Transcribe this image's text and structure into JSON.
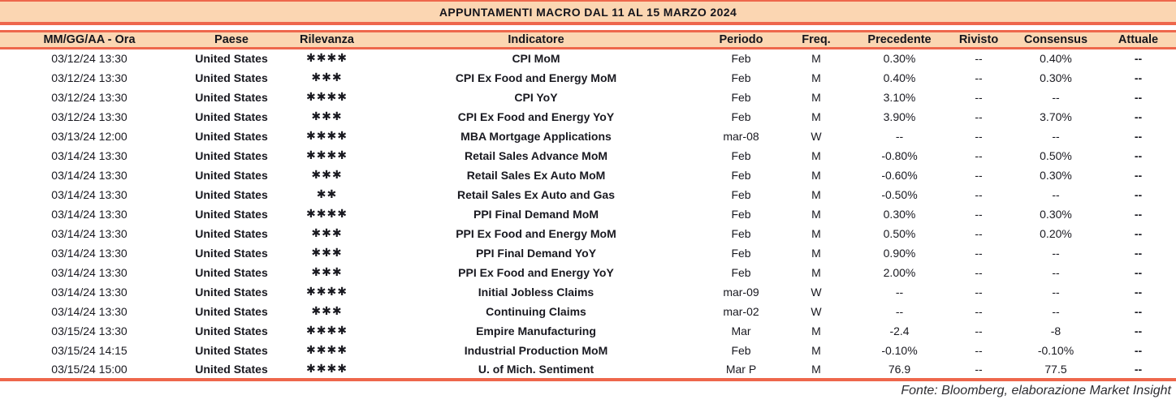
{
  "title": "APPUNTAMENTI MACRO DAL 11 AL 15 MARZO 2024",
  "footer": {
    "source": "Fonte: Bloomberg, elaborazione Market Insight"
  },
  "colors": {
    "band_background": "#fbd6b2",
    "rule_orange": "#ee674c",
    "stars_coral": "#f0705c",
    "text_dark": "#191920"
  },
  "chart_data": {
    "type": "table",
    "title": "APPUNTAMENTI MACRO DAL 11 AL 15 MARZO 2024",
    "columns": [
      "MM/GG/AA - Ora",
      "Paese",
      "Rilevanza",
      "Indicatore",
      "Periodo",
      "Freq.",
      "Precedente",
      "Rivisto",
      "Consensus",
      "Attuale"
    ],
    "column_keys": [
      "datetime",
      "paese",
      "rilevanza",
      "indicatore",
      "periodo",
      "freq",
      "precedente",
      "rivisto",
      "consensus",
      "attuale"
    ],
    "rows": [
      {
        "datetime": "03/12/24 13:30",
        "paese": "United States",
        "rilevanza": "✱✱✱✱",
        "indicatore": "CPI MoM",
        "periodo": "Feb",
        "freq": "M",
        "precedente": "0.30%",
        "rivisto": "--",
        "consensus": "0.40%",
        "attuale": "--"
      },
      {
        "datetime": "03/12/24 13:30",
        "paese": "United States",
        "rilevanza": "✱✱✱",
        "indicatore": "CPI Ex Food and Energy MoM",
        "periodo": "Feb",
        "freq": "M",
        "precedente": "0.40%",
        "rivisto": "--",
        "consensus": "0.30%",
        "attuale": "--"
      },
      {
        "datetime": "03/12/24 13:30",
        "paese": "United States",
        "rilevanza": "✱✱✱✱",
        "indicatore": "CPI YoY",
        "periodo": "Feb",
        "freq": "M",
        "precedente": "3.10%",
        "rivisto": "--",
        "consensus": "--",
        "attuale": "--"
      },
      {
        "datetime": "03/12/24 13:30",
        "paese": "United States",
        "rilevanza": "✱✱✱",
        "indicatore": "CPI Ex Food and Energy YoY",
        "periodo": "Feb",
        "freq": "M",
        "precedente": "3.90%",
        "rivisto": "--",
        "consensus": "3.70%",
        "attuale": "--"
      },
      {
        "datetime": "03/13/24 12:00",
        "paese": "United States",
        "rilevanza": "✱✱✱✱",
        "indicatore": "MBA Mortgage Applications",
        "periodo": "mar-08",
        "freq": "W",
        "precedente": "--",
        "rivisto": "--",
        "consensus": "--",
        "attuale": "--"
      },
      {
        "datetime": "03/14/24 13:30",
        "paese": "United States",
        "rilevanza": "✱✱✱✱",
        "indicatore": "Retail Sales Advance MoM",
        "periodo": "Feb",
        "freq": "M",
        "precedente": "-0.80%",
        "rivisto": "--",
        "consensus": "0.50%",
        "attuale": "--"
      },
      {
        "datetime": "03/14/24 13:30",
        "paese": "United States",
        "rilevanza": "✱✱✱",
        "indicatore": "Retail Sales Ex Auto MoM",
        "periodo": "Feb",
        "freq": "M",
        "precedente": "-0.60%",
        "rivisto": "--",
        "consensus": "0.30%",
        "attuale": "--"
      },
      {
        "datetime": "03/14/24 13:30",
        "paese": "United States",
        "rilevanza": "✱✱",
        "indicatore": "Retail Sales Ex Auto and Gas",
        "periodo": "Feb",
        "freq": "M",
        "precedente": "-0.50%",
        "rivisto": "--",
        "consensus": "--",
        "attuale": "--"
      },
      {
        "datetime": "03/14/24 13:30",
        "paese": "United States",
        "rilevanza": "✱✱✱✱",
        "indicatore": "PPI Final Demand MoM",
        "periodo": "Feb",
        "freq": "M",
        "precedente": "0.30%",
        "rivisto": "--",
        "consensus": "0.30%",
        "attuale": "--"
      },
      {
        "datetime": "03/14/24 13:30",
        "paese": "United States",
        "rilevanza": "✱✱✱",
        "indicatore": "PPI Ex Food and Energy MoM",
        "periodo": "Feb",
        "freq": "M",
        "precedente": "0.50%",
        "rivisto": "--",
        "consensus": "0.20%",
        "attuale": "--"
      },
      {
        "datetime": "03/14/24 13:30",
        "paese": "United States",
        "rilevanza": "✱✱✱",
        "indicatore": "PPI Final Demand YoY",
        "periodo": "Feb",
        "freq": "M",
        "precedente": "0.90%",
        "rivisto": "--",
        "consensus": "--",
        "attuale": "--"
      },
      {
        "datetime": "03/14/24 13:30",
        "paese": "United States",
        "rilevanza": "✱✱✱",
        "indicatore": "PPI Ex Food and Energy YoY",
        "periodo": "Feb",
        "freq": "M",
        "precedente": "2.00%",
        "rivisto": "--",
        "consensus": "--",
        "attuale": "--"
      },
      {
        "datetime": "03/14/24 13:30",
        "paese": "United States",
        "rilevanza": "✱✱✱✱",
        "indicatore": "Initial Jobless Claims",
        "periodo": "mar-09",
        "freq": "W",
        "precedente": "--",
        "rivisto": "--",
        "consensus": "--",
        "attuale": "--"
      },
      {
        "datetime": "03/14/24 13:30",
        "paese": "United States",
        "rilevanza": "✱✱✱",
        "indicatore": "Continuing Claims",
        "periodo": "mar-02",
        "freq": "W",
        "precedente": "--",
        "rivisto": "--",
        "consensus": "--",
        "attuale": "--"
      },
      {
        "datetime": "03/15/24 13:30",
        "paese": "United States",
        "rilevanza": "✱✱✱✱",
        "indicatore": "Empire Manufacturing",
        "periodo": "Mar",
        "freq": "M",
        "precedente": "-2.4",
        "rivisto": "--",
        "consensus": "-8",
        "attuale": "--"
      },
      {
        "datetime": "03/15/24 14:15",
        "paese": "United States",
        "rilevanza": "✱✱✱✱",
        "indicatore": "Industrial Production MoM",
        "periodo": "Feb",
        "freq": "M",
        "precedente": "-0.10%",
        "rivisto": "--",
        "consensus": "-0.10%",
        "attuale": "--"
      },
      {
        "datetime": "03/15/24 15:00",
        "paese": "United States",
        "rilevanza": "✱✱✱✱",
        "indicatore": "U. of Mich. Sentiment",
        "periodo": "Mar P",
        "freq": "M",
        "precedente": "76.9",
        "rivisto": "--",
        "consensus": "77.5",
        "attuale": "--"
      }
    ]
  }
}
